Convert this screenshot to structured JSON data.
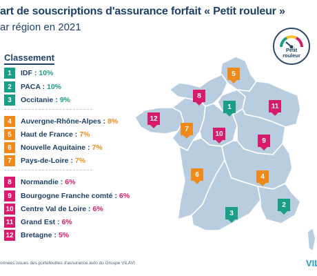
{
  "header": {
    "title": "art de souscriptions d'assurance forfait « Petit rouleur »",
    "subtitle": "ar région en 2021"
  },
  "legend": {
    "title": "Classement",
    "items": [
      {
        "rank": "1",
        "name": "IDF :",
        "value": "10%",
        "color": "#1a9e86"
      },
      {
        "rank": "2",
        "name": "PACA :",
        "value": "10%",
        "color": "#1a9e86"
      },
      {
        "rank": "3",
        "name": "Occitanie :",
        "value": "9%",
        "color": "#1a9e86"
      },
      {
        "rank": "4",
        "name": "Auvergne-Rhône-Alpes :",
        "value": "8%",
        "color": "#ef8b1c"
      },
      {
        "rank": "5",
        "name": "Haut de France :",
        "value": "7%",
        "color": "#ef8b1c"
      },
      {
        "rank": "6",
        "name": "Nouvelle Aquitaine :",
        "value": "7%",
        "color": "#ef8b1c"
      },
      {
        "rank": "7",
        "name": "Pays-de-Loire :",
        "value": "7%",
        "color": "#ef8b1c"
      },
      {
        "rank": "8",
        "name": "Normandie :",
        "value": "6%",
        "color": "#d81b6a"
      },
      {
        "rank": "9",
        "name": "Bourgogne Franche comté :",
        "value": "6%",
        "color": "#d81b6a"
      },
      {
        "rank": "10",
        "name": "Centre Val de Loire :",
        "value": "6%",
        "color": "#d81b6a"
      },
      {
        "rank": "11",
        "name": "Grand Est :",
        "value": "6%",
        "color": "#d81b6a"
      },
      {
        "rank": "12",
        "name": "Bretagne :",
        "value": "5%",
        "color": "#d81b6a"
      }
    ]
  },
  "map_markers": [
    {
      "rank": "1",
      "color": "#1a9e86",
      "region": "IDF"
    },
    {
      "rank": "2",
      "color": "#1a9e86",
      "region": "PACA"
    },
    {
      "rank": "3",
      "color": "#1a9e86",
      "region": "Occitanie"
    },
    {
      "rank": "4",
      "color": "#ef8b1c",
      "region": "Auvergne-Rhône-Alpes"
    },
    {
      "rank": "5",
      "color": "#ef8b1c",
      "region": "Haut de France"
    },
    {
      "rank": "6",
      "color": "#ef8b1c",
      "region": "Nouvelle Aquitaine"
    },
    {
      "rank": "7",
      "color": "#ef8b1c",
      "region": "Pays-de-Loire"
    },
    {
      "rank": "8",
      "color": "#d81b6a",
      "region": "Normandie"
    },
    {
      "rank": "9",
      "color": "#d81b6a",
      "region": "Bourgogne Franche comté"
    },
    {
      "rank": "10",
      "color": "#d81b6a",
      "region": "Centre Val de Loire"
    },
    {
      "rank": "11",
      "color": "#d81b6a",
      "region": "Grand Est"
    },
    {
      "rank": "12",
      "color": "#d81b6a",
      "region": "Bretagne"
    }
  ],
  "badge": {
    "line1": "Petit",
    "line2": "rouleur",
    "icon": "speedometer-icon"
  },
  "footer": {
    "source": "onnées issues des portefeuilles d'assurance auto du Groupe VILAVI",
    "logo": "VIL"
  },
  "colors": {
    "tier1": "#1a9e86",
    "tier2": "#ef8b1c",
    "tier3": "#d81b6a",
    "map_fill": "#b9cde0",
    "map_border": "#ffffff",
    "text": "#1e4068"
  }
}
